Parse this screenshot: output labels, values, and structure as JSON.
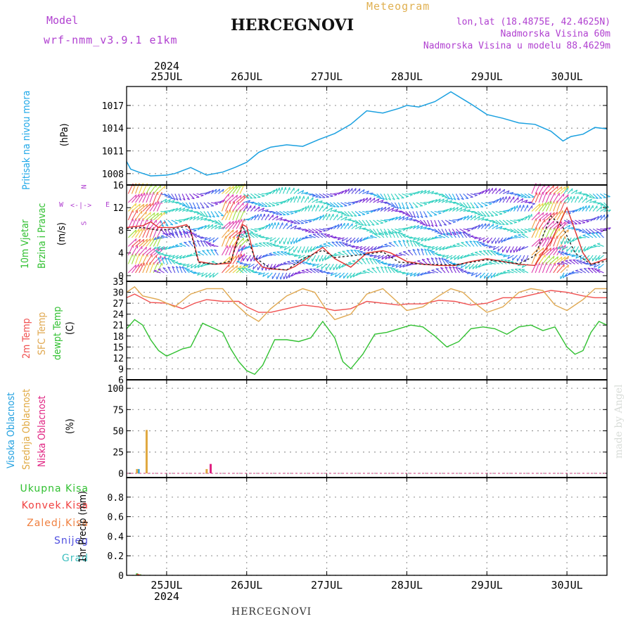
{
  "header": {
    "model_label": "Model",
    "model_name": "wrf-nmm_v3.9.1 e1km",
    "station": "HERCEGNOVI",
    "product": "Meteogram",
    "lonlat": "lon,lat (18.4875E, 42.4625N)",
    "altitude": "Nadmorska Visina 60m",
    "model_altitude": "Nadmorska Visina u modelu 88.4629m"
  },
  "footer": {
    "station": "HERCEGNOVI",
    "credit": "made by Angel"
  },
  "wind_compass": {
    "n": "N",
    "s": "S",
    "e": "E",
    "w": "W"
  },
  "colors": {
    "pressure": "#1aa0e0",
    "t2m": "#f05050",
    "tsfc": "#e0a850",
    "dewpt": "#30c030",
    "cloud_high": "#20a0e0",
    "cloud_mid": "#e0a840",
    "cloud_low": "#e02080",
    "rain_total": "#30c030",
    "rain_conv": "#f04040",
    "rain_strat": "#f08040",
    "snow": "#5050e0",
    "grad": "#40c0c0",
    "title_purple": "#b040d0"
  },
  "chart_data": [
    {
      "type": "line",
      "panel": "pressure",
      "title": "",
      "ylabel": [
        "Pritisak na nivou mora",
        "(hPa)"
      ],
      "ylim": [
        1006.5,
        1019.5
      ],
      "yticks": [
        1008,
        1011,
        1014,
        1017
      ],
      "grid": true,
      "x_unit": "days from 25JUL 00UTC",
      "xlim": [
        -0.5,
        5.5
      ],
      "x_top_labels": [
        "25JUL",
        "26JUL",
        "27JUL",
        "28JUL",
        "29JUL",
        "30JUL"
      ],
      "x_top_year": "2024",
      "series": [
        {
          "name": "",
          "color": "#1aa0e0",
          "x": [
            -0.5,
            -0.45,
            -0.35,
            -0.2,
            0,
            0.1,
            0.3,
            0.5,
            0.7,
            0.85,
            1.0,
            1.15,
            1.3,
            1.5,
            1.7,
            1.9,
            2.1,
            2.3,
            2.5,
            2.7,
            2.9,
            3.0,
            3.15,
            3.35,
            3.55,
            3.8,
            4.0,
            4.2,
            4.4,
            4.6,
            4.8,
            4.95,
            5.05,
            5.2,
            5.35,
            5.5
          ],
          "y": [
            1009.6,
            1008.6,
            1008.2,
            1007.7,
            1007.8,
            1008.0,
            1008.8,
            1007.8,
            1008.2,
            1008.8,
            1009.5,
            1010.8,
            1011.5,
            1011.8,
            1011.6,
            1012.5,
            1013.3,
            1014.5,
            1016.3,
            1016.0,
            1016.6,
            1017.0,
            1016.8,
            1017.5,
            1018.8,
            1017.2,
            1015.8,
            1015.3,
            1014.7,
            1014.5,
            1013.6,
            1012.3,
            1012.9,
            1013.2,
            1014.1,
            1013.9
          ]
        }
      ]
    },
    {
      "type": "line",
      "panel": "wind",
      "title": "",
      "ylabel": [
        "10m Vjetar",
        "Brzina i Pravac",
        "(m/s)"
      ],
      "ylim": [
        -1,
        16
      ],
      "yticks": [
        0,
        4,
        8,
        12,
        16
      ],
      "grid": true,
      "note": "wind barbs (direction arrows) drawn decoratively along the series",
      "series": [
        {
          "name": "",
          "color": "#e03030",
          "x": [
            -0.5,
            -0.3,
            -0.2,
            -0.1,
            0.1,
            0.25,
            0.3,
            0.4,
            0.6,
            0.8,
            0.85,
            0.95,
            1.0,
            1.1,
            1.2,
            1.3,
            1.5,
            1.6,
            1.8,
            1.95,
            2.1,
            2.3,
            2.5,
            2.7,
            2.8,
            3.0,
            3.2,
            3.4,
            3.6,
            3.8,
            4.0,
            4.2,
            4.4,
            4.6,
            4.7,
            4.8,
            5.0,
            5.1,
            5.2,
            5.3,
            5.5
          ],
          "y": [
            8.5,
            8.8,
            9.5,
            8.5,
            8.5,
            9.0,
            8.0,
            2.5,
            2.0,
            2.2,
            5.0,
            9.0,
            8.6,
            3.0,
            1.5,
            1.2,
            1.0,
            1.6,
            3.5,
            5.0,
            3.0,
            1.5,
            4.0,
            4.4,
            4.0,
            2.5,
            2.0,
            1.8,
            1.8,
            2.5,
            3.0,
            2.5,
            2.0,
            1.8,
            4.0,
            6.0,
            12.0,
            8.0,
            4.0,
            2.0,
            3.0
          ]
        },
        {
          "name": "",
          "color": "#222222",
          "x": [
            -0.5,
            -0.3,
            -0.1,
            0.1,
            0.28,
            0.4,
            0.6,
            0.8,
            0.95,
            1.1,
            1.3,
            1.5,
            1.7,
            1.95,
            2.1,
            2.5,
            2.7,
            2.9,
            3.2,
            3.6,
            4.0,
            4.4,
            4.6,
            4.8,
            4.95,
            5.1,
            5.3,
            5.5
          ],
          "y": [
            8.3,
            8.5,
            8.0,
            8.3,
            8.8,
            2.3,
            2.0,
            2.5,
            8.8,
            3.2,
            1.3,
            1.0,
            3.0,
            4.5,
            3.2,
            3.8,
            4.2,
            2.4,
            2.0,
            1.9,
            2.8,
            2.1,
            3.5,
            10.5,
            8.5,
            4.0,
            2.0,
            2.6
          ]
        }
      ]
    },
    {
      "type": "line",
      "panel": "temperature",
      "title": "",
      "ylabel": [
        "2m Temp",
        "SFC Temp",
        "dewpt Temp",
        "(C)"
      ],
      "ylim": [
        6,
        33
      ],
      "yticks": [
        6,
        9,
        12,
        15,
        18,
        21,
        24,
        27,
        30,
        33
      ],
      "grid": true,
      "series": [
        {
          "name": "2m Temp",
          "color": "#f05050",
          "x": [
            -0.5,
            -0.4,
            -0.2,
            0,
            0.2,
            0.35,
            0.5,
            0.7,
            0.9,
            1.0,
            1.15,
            1.3,
            1.5,
            1.7,
            1.9,
            2.1,
            2.3,
            2.5,
            2.7,
            2.9,
            3.0,
            3.2,
            3.4,
            3.6,
            3.8,
            4.0,
            4.2,
            4.4,
            4.6,
            4.8,
            5.0,
            5.2,
            5.35,
            5.5
          ],
          "y": [
            28.5,
            29.5,
            27.2,
            27.0,
            25.5,
            27.0,
            28.0,
            27.5,
            27.5,
            26.0,
            24.5,
            24.5,
            25.5,
            26.5,
            26.0,
            25.0,
            25.5,
            27.5,
            27.0,
            26.5,
            26.8,
            26.8,
            27.8,
            27.5,
            26.5,
            27.0,
            28.5,
            28.5,
            29.5,
            30.5,
            30.0,
            29.0,
            28.5,
            28.5
          ]
        },
        {
          "name": "SFC Temp",
          "color": "#e0a850",
          "x": [
            -0.5,
            -0.4,
            -0.3,
            -0.1,
            0.1,
            0.3,
            0.5,
            0.7,
            0.85,
            1.0,
            1.15,
            1.3,
            1.5,
            1.7,
            1.85,
            2.0,
            2.1,
            2.3,
            2.5,
            2.7,
            2.85,
            3.0,
            3.2,
            3.4,
            3.55,
            3.7,
            3.85,
            4.0,
            4.2,
            4.4,
            4.55,
            4.7,
            4.85,
            5.0,
            5.2,
            5.35,
            5.5
          ],
          "y": [
            30.0,
            31.5,
            29.0,
            28.0,
            26.0,
            29.5,
            31.0,
            31.0,
            27.0,
            24.0,
            22.0,
            25.5,
            29.0,
            31.0,
            30.0,
            25.0,
            22.5,
            24.0,
            29.5,
            31.0,
            28.0,
            25.0,
            26.0,
            29.0,
            31.0,
            30.0,
            27.0,
            24.5,
            26.0,
            30.0,
            31.0,
            30.5,
            26.5,
            25.0,
            28.0,
            31.0,
            31.0
          ]
        },
        {
          "name": "dewpt Temp",
          "color": "#30c030",
          "x": [
            -0.5,
            -0.4,
            -0.3,
            -0.2,
            -0.1,
            0,
            0.1,
            0.2,
            0.3,
            0.45,
            0.55,
            0.7,
            0.8,
            0.9,
            1.0,
            1.1,
            1.2,
            1.35,
            1.5,
            1.65,
            1.8,
            1.95,
            2.1,
            2.2,
            2.3,
            2.45,
            2.6,
            2.75,
            2.9,
            3.05,
            3.2,
            3.35,
            3.5,
            3.65,
            3.8,
            3.95,
            4.1,
            4.25,
            4.4,
            4.55,
            4.7,
            4.85,
            5.0,
            5.1,
            5.2,
            5.3,
            5.4,
            5.5
          ],
          "y": [
            20.0,
            22.5,
            21.0,
            17.0,
            14.0,
            12.5,
            13.5,
            14.5,
            15.0,
            21.5,
            20.5,
            19.0,
            14.5,
            11.0,
            8.5,
            7.5,
            10.0,
            17.0,
            17.0,
            16.5,
            17.5,
            22.0,
            17.5,
            11.0,
            9.0,
            13.0,
            18.5,
            19.0,
            20.0,
            21.0,
            20.5,
            18.0,
            15.0,
            16.5,
            20.0,
            20.5,
            20.0,
            18.5,
            20.5,
            21.0,
            19.5,
            20.5,
            15.0,
            13.0,
            14.0,
            19.0,
            22.0,
            21.0
          ]
        }
      ]
    },
    {
      "type": "bar",
      "panel": "cloud",
      "title": "",
      "ylabel": [
        "Visoka Oblacnost",
        "Srednja Oblacnost",
        "Niska Oblacnost",
        "(%)"
      ],
      "ylim": [
        -5,
        110
      ],
      "yticks": [
        0,
        25,
        50,
        75,
        100
      ],
      "grid": true,
      "series": [
        {
          "name": "Visoka Oblacnost",
          "color": "#20a0e0",
          "x": [
            -0.35
          ],
          "values": [
            5
          ]
        },
        {
          "name": "Srednja Oblacnost",
          "color": "#e0a840",
          "x": [
            -0.37,
            -0.25,
            0.5
          ],
          "values": [
            5,
            51,
            5
          ]
        },
        {
          "name": "Niska Oblacnost",
          "color": "#e02080",
          "x": [
            0.55
          ],
          "values": [
            11
          ]
        }
      ]
    },
    {
      "type": "bar",
      "panel": "precip",
      "title": "",
      "ylabel": [
        "1hr Precip (mm)"
      ],
      "ylim": [
        0,
        1.0
      ],
      "yticks": [
        0,
        0.2,
        0.4,
        0.6,
        0.8
      ],
      "grid": true,
      "x_bottom_labels": [
        "25JUL",
        "26JUL",
        "27JUL",
        "28JUL",
        "29JUL",
        "30JUL"
      ],
      "x_bottom_year": "2024",
      "series": [
        {
          "name": "Ukupna Kisa",
          "color": "#30c030",
          "x": [
            -0.37,
            -0.33
          ],
          "values": [
            0.02,
            0.01
          ]
        },
        {
          "name": "Konvek.Kisa",
          "color": "#f04040",
          "x": [
            -0.36
          ],
          "values": [
            0.015
          ]
        },
        {
          "name": "Zaledj.Kisa",
          "color": "#f08040",
          "x": [
            -0.34
          ],
          "values": [
            0.01
          ]
        },
        {
          "name": "Snijeg",
          "color": "#5050e0",
          "x": [],
          "values": []
        },
        {
          "name": "Grad",
          "color": "#40c0c0",
          "x": [],
          "values": []
        }
      ]
    }
  ]
}
